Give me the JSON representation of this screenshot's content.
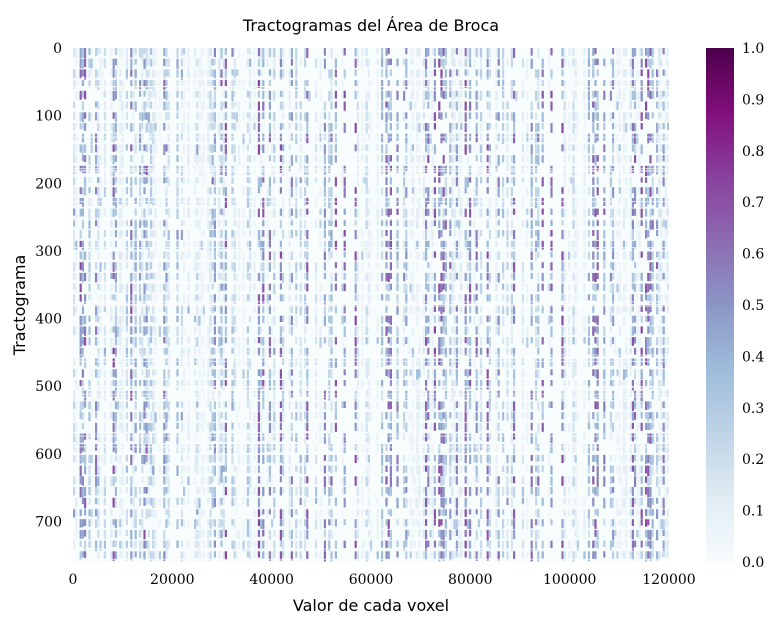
{
  "chart_data": {
    "type": "heatmap",
    "title": "Tractogramas del Área de Broca",
    "xlabel": "Valor de cada voxel",
    "ylabel": "Tractograma",
    "xlim": [
      0,
      120000
    ],
    "ylim": [
      0,
      760
    ],
    "x_ticks": [
      0,
      20000,
      40000,
      60000,
      80000,
      100000,
      120000
    ],
    "x_tick_labels": [
      "0",
      "20000",
      "40000",
      "60000",
      "80000",
      "100000",
      "120000"
    ],
    "y_ticks": [
      0,
      100,
      200,
      300,
      400,
      500,
      600,
      700
    ],
    "y_tick_labels": [
      "0",
      "100",
      "200",
      "300",
      "400",
      "500",
      "600",
      "700"
    ],
    "colorbar": {
      "colormap": "BuPu",
      "range": [
        0.0,
        1.0
      ],
      "ticks": [
        0.0,
        0.1,
        0.2,
        0.3,
        0.4,
        0.5,
        0.6,
        0.7,
        0.8,
        0.9,
        1.0
      ],
      "tick_labels": [
        "0.0",
        "0.1",
        "0.2",
        "0.3",
        "0.4",
        "0.5",
        "0.6",
        "0.7",
        "0.8",
        "0.9",
        "1.0"
      ],
      "stops": [
        "#f7fcfd",
        "#e0ecf4",
        "#bfd3e6",
        "#9ebcda",
        "#8c96c6",
        "#8c6bb1",
        "#88419d",
        "#810f7c",
        "#4d004b"
      ]
    },
    "grid": false,
    "legend": "none"
  }
}
